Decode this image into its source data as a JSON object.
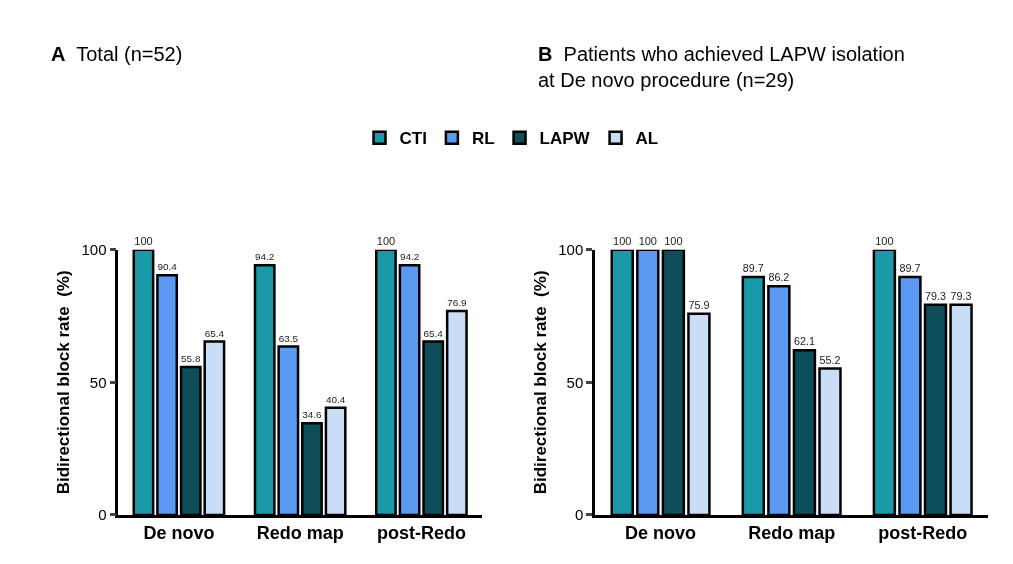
{
  "chart_data": [
    {
      "type": "bar",
      "title": "A Total (n=52)",
      "ylabel": "Bidirectional block rate  (%)",
      "categories": [
        "De novo",
        "Redo map",
        "post-Redo"
      ],
      "series": [
        {
          "name": "CTI",
          "color": "#1a9aa8",
          "values": [
            100,
            94.2,
            100
          ]
        },
        {
          "name": "RL",
          "color": "#5b9af0",
          "values": [
            90.4,
            63.5,
            94.2
          ]
        },
        {
          "name": "LAPW",
          "color": "#0e4d5a",
          "values": [
            55.8,
            34.6,
            65.4
          ]
        },
        {
          "name": "AL",
          "color": "#c9ddf6",
          "values": [
            65.4,
            40.4,
            76.9
          ]
        }
      ],
      "ylim": [
        0,
        100
      ],
      "yticks": [
        0,
        50,
        100
      ],
      "data_labels": true,
      "legend": "top"
    },
    {
      "type": "bar",
      "title": "B Patients who achieved LAPW isolation\nat De novo procedure (n=29)",
      "ylabel": "Bidirectional block rate  (%)",
      "categories": [
        "De novo",
        "Redo map",
        "post-Redo"
      ],
      "series": [
        {
          "color": "#1a9aa8",
          "values": [
            100,
            89.7,
            100
          ]
        },
        {
          "color": "#5b9af0",
          "values": [
            100,
            86.2,
            89.7
          ]
        },
        {
          "color": "#0e4d5a",
          "values": [
            100,
            62.1,
            79.3
          ]
        },
        {
          "color": "#c9ddf6",
          "values": [
            75.9,
            55.2,
            79.3
          ]
        }
      ],
      "ylim": [
        0,
        100
      ],
      "yticks": [
        0,
        50,
        100
      ],
      "data_labels": true
    }
  ]
}
